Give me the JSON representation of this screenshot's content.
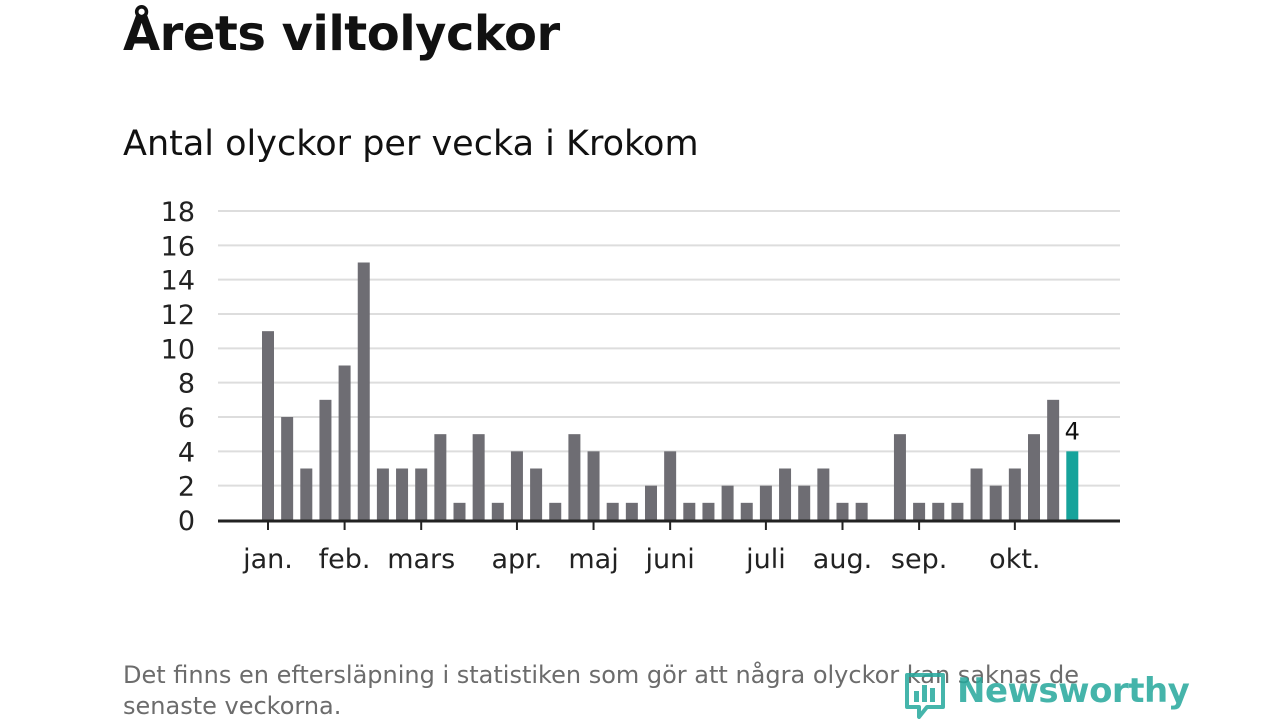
{
  "title": "Årets viltolyckor",
  "subtitle": "Antal olyckor per vecka i Krokom",
  "footnote": "Det finns en eftersläpning i statistiken som gör att några olyckor kan saknas de senaste veckorna.",
  "brand": {
    "name": "Newsworthy",
    "icon": "newsworthy-logo-icon",
    "color": "#25a89c"
  },
  "colors": {
    "bar": "#6e6d73",
    "highlight": "#16a39b",
    "grid": "#dddddd",
    "axis": "#222222"
  },
  "chart_data": {
    "type": "bar",
    "title": "Antal olyckor per vecka i Krokom",
    "xlabel": "",
    "ylabel": "",
    "ylim": [
      0,
      18
    ],
    "yticks": [
      "0",
      "2",
      "4",
      "6",
      "8",
      "10",
      "12",
      "14",
      "16",
      "18"
    ],
    "grid": true,
    "unit": "vecka",
    "values": [
      11,
      6,
      3,
      7,
      9,
      15,
      3,
      3,
      3,
      5,
      1,
      5,
      1,
      4,
      3,
      1,
      5,
      4,
      1,
      1,
      2,
      4,
      1,
      1,
      2,
      1,
      2,
      3,
      2,
      3,
      1,
      1,
      0,
      5,
      1,
      1,
      1,
      3,
      2,
      3,
      5,
      7,
      4
    ],
    "highlight_index": 42,
    "highlight_label": "4",
    "month_labels": [
      {
        "label": "jan.",
        "week": 0
      },
      {
        "label": "feb.",
        "week": 4
      },
      {
        "label": "mars",
        "week": 8
      },
      {
        "label": "apr.",
        "week": 13
      },
      {
        "label": "maj",
        "week": 17
      },
      {
        "label": "juni",
        "week": 21
      },
      {
        "label": "juli",
        "week": 26
      },
      {
        "label": "aug.",
        "week": 30
      },
      {
        "label": "sep.",
        "week": 34
      },
      {
        "label": "okt.",
        "week": 39
      }
    ]
  }
}
